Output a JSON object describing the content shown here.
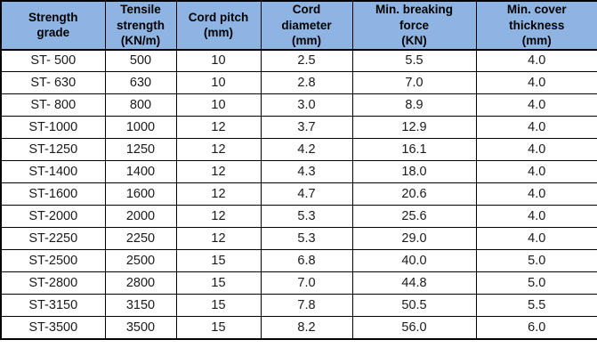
{
  "colors": {
    "header_background": "#8DB4E2",
    "border": "#000000",
    "body_text": "#1a1a1a",
    "header_text": "#000000"
  },
  "chart_data": {
    "type": "table",
    "columns": [
      "Strength\ngrade",
      "Tensile\nstrength\n(KN/m)",
      "Cord pitch\n(mm)",
      "Cord\ndiameter\n(mm)",
      "Min. breaking\nforce\n(KN)",
      "Min. cover\nthickness\n(mm)"
    ],
    "rows": [
      [
        "ST- 500",
        "500",
        "10",
        "2.5",
        "5.5",
        "4.0"
      ],
      [
        "ST- 630",
        "630",
        "10",
        "2.8",
        "7.0",
        "4.0"
      ],
      [
        "ST- 800",
        "800",
        "10",
        "3.0",
        "8.9",
        "4.0"
      ],
      [
        "ST-1000",
        "1000",
        "12",
        "3.7",
        "12.9",
        "4.0"
      ],
      [
        "ST-1250",
        "1250",
        "12",
        "4.2",
        "16.1",
        "4.0"
      ],
      [
        "ST-1400",
        "1400",
        "12",
        "4.3",
        "18.0",
        "4.0"
      ],
      [
        "ST-1600",
        "1600",
        "12",
        "4.7",
        "20.6",
        "4.0"
      ],
      [
        "ST-2000",
        "2000",
        "12",
        "5.3",
        "25.6",
        "4.0"
      ],
      [
        "ST-2250",
        "2250",
        "12",
        "5.3",
        "29.0",
        "4.0"
      ],
      [
        "ST-2500",
        "2500",
        "15",
        "6.8",
        "40.0",
        "5.0"
      ],
      [
        "ST-2800",
        "2800",
        "15",
        "7.0",
        "44.8",
        "5.0"
      ],
      [
        "ST-3150",
        "3150",
        "15",
        "7.8",
        "50.5",
        "5.5"
      ],
      [
        "ST-3500",
        "3500",
        "15",
        "8.2",
        "56.0",
        "6.0"
      ]
    ]
  }
}
